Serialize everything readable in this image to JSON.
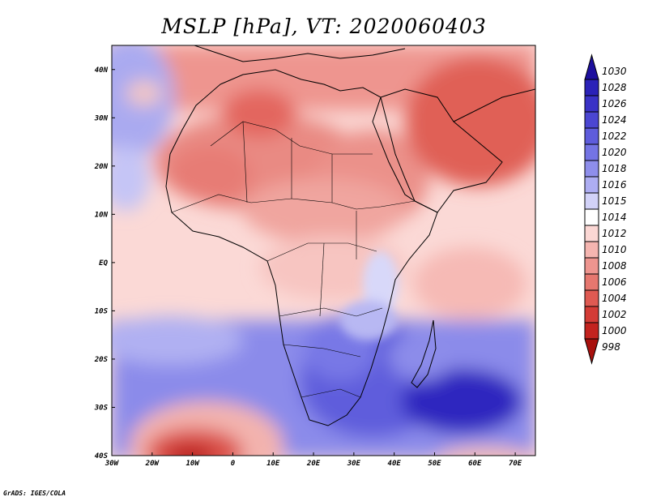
{
  "title": "MSLP [hPa], VT: 2020060403",
  "credit": "GrADS: IGES/COLA",
  "map": {
    "lon_range": [
      -30,
      75
    ],
    "lat_range": [
      -40,
      45
    ],
    "lon_ticks": [
      {
        "value": -30,
        "label": "30W"
      },
      {
        "value": -20,
        "label": "20W"
      },
      {
        "value": -10,
        "label": "10W"
      },
      {
        "value": 0,
        "label": "0"
      },
      {
        "value": 10,
        "label": "10E"
      },
      {
        "value": 20,
        "label": "20E"
      },
      {
        "value": 30,
        "label": "30E"
      },
      {
        "value": 40,
        "label": "40E"
      },
      {
        "value": 50,
        "label": "50E"
      },
      {
        "value": 60,
        "label": "60E"
      },
      {
        "value": 70,
        "label": "70E"
      }
    ],
    "lat_ticks": [
      {
        "value": 40,
        "label": "40N"
      },
      {
        "value": 30,
        "label": "30N"
      },
      {
        "value": 20,
        "label": "20N"
      },
      {
        "value": 10,
        "label": "10N"
      },
      {
        "value": 0,
        "label": "EQ"
      },
      {
        "value": -10,
        "label": "10S"
      },
      {
        "value": -20,
        "label": "20S"
      },
      {
        "value": -30,
        "label": "30S"
      },
      {
        "value": -40,
        "label": "40S"
      }
    ]
  },
  "colorbar": {
    "levels": [
      {
        "label": "1030",
        "color": "#1d0f9e"
      },
      {
        "label": "1028",
        "color": "#2b22b8"
      },
      {
        "label": "1026",
        "color": "#3a32c6"
      },
      {
        "label": "1024",
        "color": "#4b46d2"
      },
      {
        "label": "1022",
        "color": "#5e5cdc"
      },
      {
        "label": "1020",
        "color": "#7474e4"
      },
      {
        "label": "1018",
        "color": "#8e8eeb"
      },
      {
        "label": "1016",
        "color": "#adadf2"
      },
      {
        "label": "1015",
        "color": "#d2d2f8"
      },
      {
        "label": "1014",
        "color": "#ffffff"
      },
      {
        "label": "1012",
        "color": "#fbd7d4"
      },
      {
        "label": "1010",
        "color": "#f5b5b0"
      },
      {
        "label": "1008",
        "color": "#ee958f"
      },
      {
        "label": "1006",
        "color": "#e6776f"
      },
      {
        "label": "1004",
        "color": "#df5a52"
      },
      {
        "label": "1002",
        "color": "#d43c36"
      },
      {
        "label": "1000",
        "color": "#c3231f"
      },
      {
        "label": "998",
        "color": "#a8100d"
      }
    ]
  }
}
